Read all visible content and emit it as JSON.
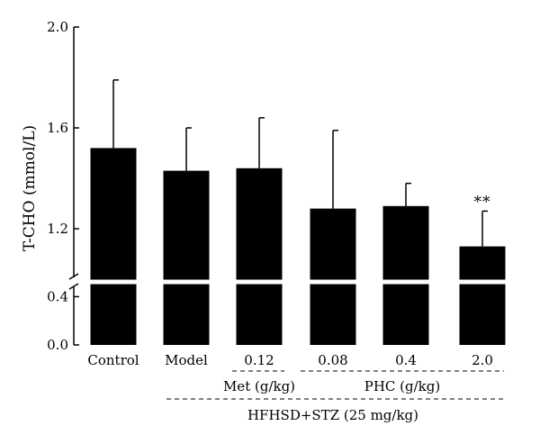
{
  "chart_data": {
    "type": "bar",
    "ylabel": "T-CHO (mmol/L)",
    "upper_axis": {
      "range": [
        1.0,
        2.0
      ],
      "ticks": [
        "1.2",
        "1.6",
        "2.0"
      ]
    },
    "lower_axis": {
      "range": [
        0.0,
        0.5
      ],
      "ticks": [
        "0.0",
        "0.4"
      ]
    },
    "axis_break": true,
    "categories": [
      "Control",
      "Model",
      "0.12",
      "0.08",
      "0.4",
      "2.0"
    ],
    "values": [
      1.52,
      1.43,
      1.44,
      1.28,
      1.29,
      1.13
    ],
    "error_upper": [
      1.79,
      1.6,
      1.64,
      1.59,
      1.38,
      1.27
    ],
    "annotations": [
      {
        "category_index": 5,
        "text": "**"
      }
    ],
    "groups": [
      {
        "label": "Met (g/kg)",
        "categories": [
          "0.12"
        ]
      },
      {
        "label": "PHC (g/kg)",
        "categories": [
          "0.08",
          "0.4",
          "2.0"
        ]
      },
      {
        "label": "HFHSD+STZ (25 mg/kg)",
        "categories": [
          "Model",
          "0.12",
          "0.08",
          "0.4",
          "2.0"
        ]
      }
    ]
  }
}
